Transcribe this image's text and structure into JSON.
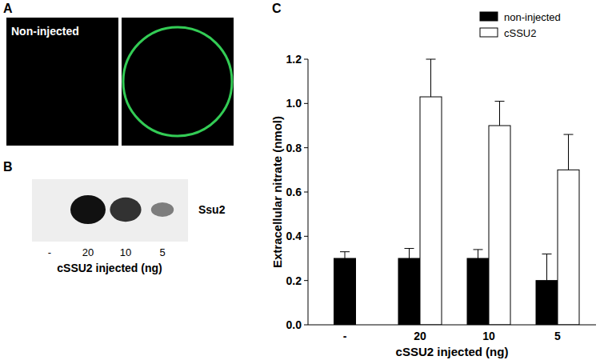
{
  "panel_labels": [
    "A",
    "B",
    "C"
  ],
  "image_panel": {
    "label": "Non-injected"
  },
  "blot": {
    "band_label": "Ssu2",
    "lanes": [
      "-",
      "20",
      "10",
      "5"
    ],
    "band_intensity": [
      0,
      1,
      0.8,
      0.35
    ],
    "xlabel": "cSSU2 injected (ng)"
  },
  "chart_data": {
    "type": "bar",
    "categories": [
      "-",
      "20",
      "10",
      "5"
    ],
    "series": [
      {
        "name": "non-injected",
        "color": "#000000",
        "values": [
          0.3,
          0.3,
          0.3,
          0.2
        ],
        "errors": [
          0.03,
          0.045,
          0.04,
          0.12
        ]
      },
      {
        "name": "cSSU2",
        "color": "#ffffff",
        "values": [
          null,
          1.03,
          0.9,
          0.7
        ],
        "errors": [
          null,
          0.17,
          0.11,
          0.16
        ]
      }
    ],
    "xlabel": "cSSU2 injected (ng)",
    "ylabel": "Extracellular nitrate (nmol)",
    "ylim": [
      0,
      1.2
    ],
    "yticks": [
      {
        "value": 0,
        "label": "0.0"
      },
      {
        "value": 0.2,
        "label": "0.2"
      },
      {
        "value": 0.4,
        "label": "0.4"
      },
      {
        "value": 0.6,
        "label": "0.6"
      },
      {
        "value": 0.8,
        "label": "0.8"
      },
      {
        "value": 1,
        "label": "1.0"
      },
      {
        "value": 1.2,
        "label": "1.2"
      }
    ],
    "legend": "upper-right",
    "grid": false
  }
}
